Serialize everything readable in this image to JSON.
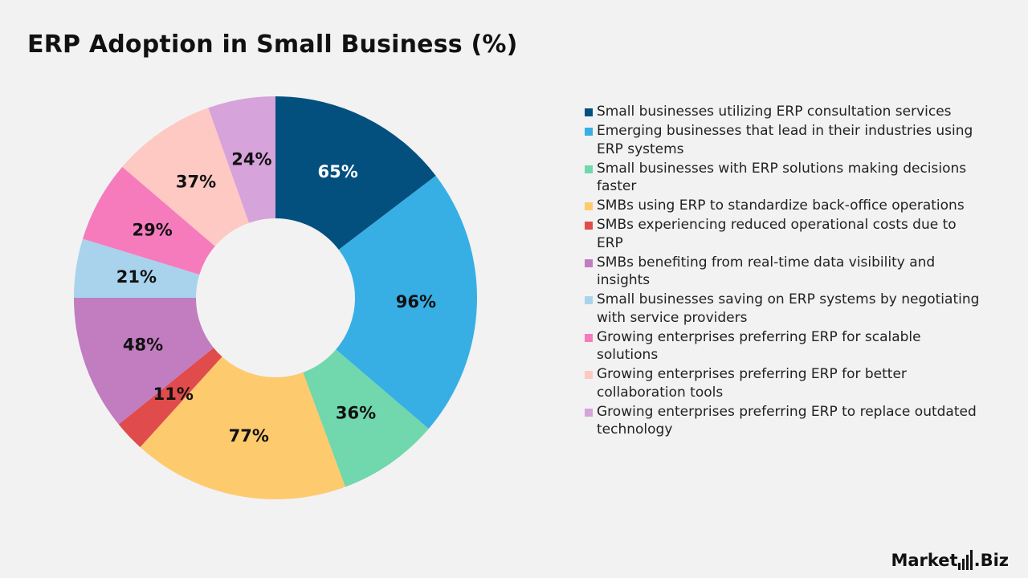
{
  "title": "ERP Adoption in Small Business (%)",
  "brand": {
    "name_part1": "Market",
    "name_part2": ".Biz"
  },
  "chart_data": {
    "type": "pie",
    "donut": true,
    "title": "ERP Adoption in Small Business (%)",
    "legend_position": "right",
    "categories": [
      "Small businesses utilizing ERP consultation services",
      "Emerging businesses that lead in their industries using ERP systems",
      "Small businesses with ERP solutions making decisions faster",
      "SMBs using ERP to standardize back-office operations",
      "SMBs experiencing reduced operational costs due to ERP",
      "SMBs benefiting from real-time data visibility and insights",
      "Small businesses saving on ERP systems by negotiating with service providers",
      "Growing enterprises preferring ERP for scalable solutions",
      "Growing enterprises preferring ERP for better collaboration tools",
      "Growing enterprises preferring ERP to replace outdated technology"
    ],
    "values": [
      65,
      96,
      36,
      77,
      11,
      48,
      21,
      29,
      37,
      24
    ],
    "data_labels": [
      "65%",
      "96%",
      "36%",
      "77%",
      "11%",
      "48%",
      "21%",
      "29%",
      "37%",
      "24%"
    ],
    "colors": [
      "#03507f",
      "#38afe4",
      "#71d7ac",
      "#fdca6e",
      "#e04b4b",
      "#c17dbf",
      "#a9d3ec",
      "#f67bbd",
      "#fec8c3",
      "#d6a3da"
    ]
  }
}
